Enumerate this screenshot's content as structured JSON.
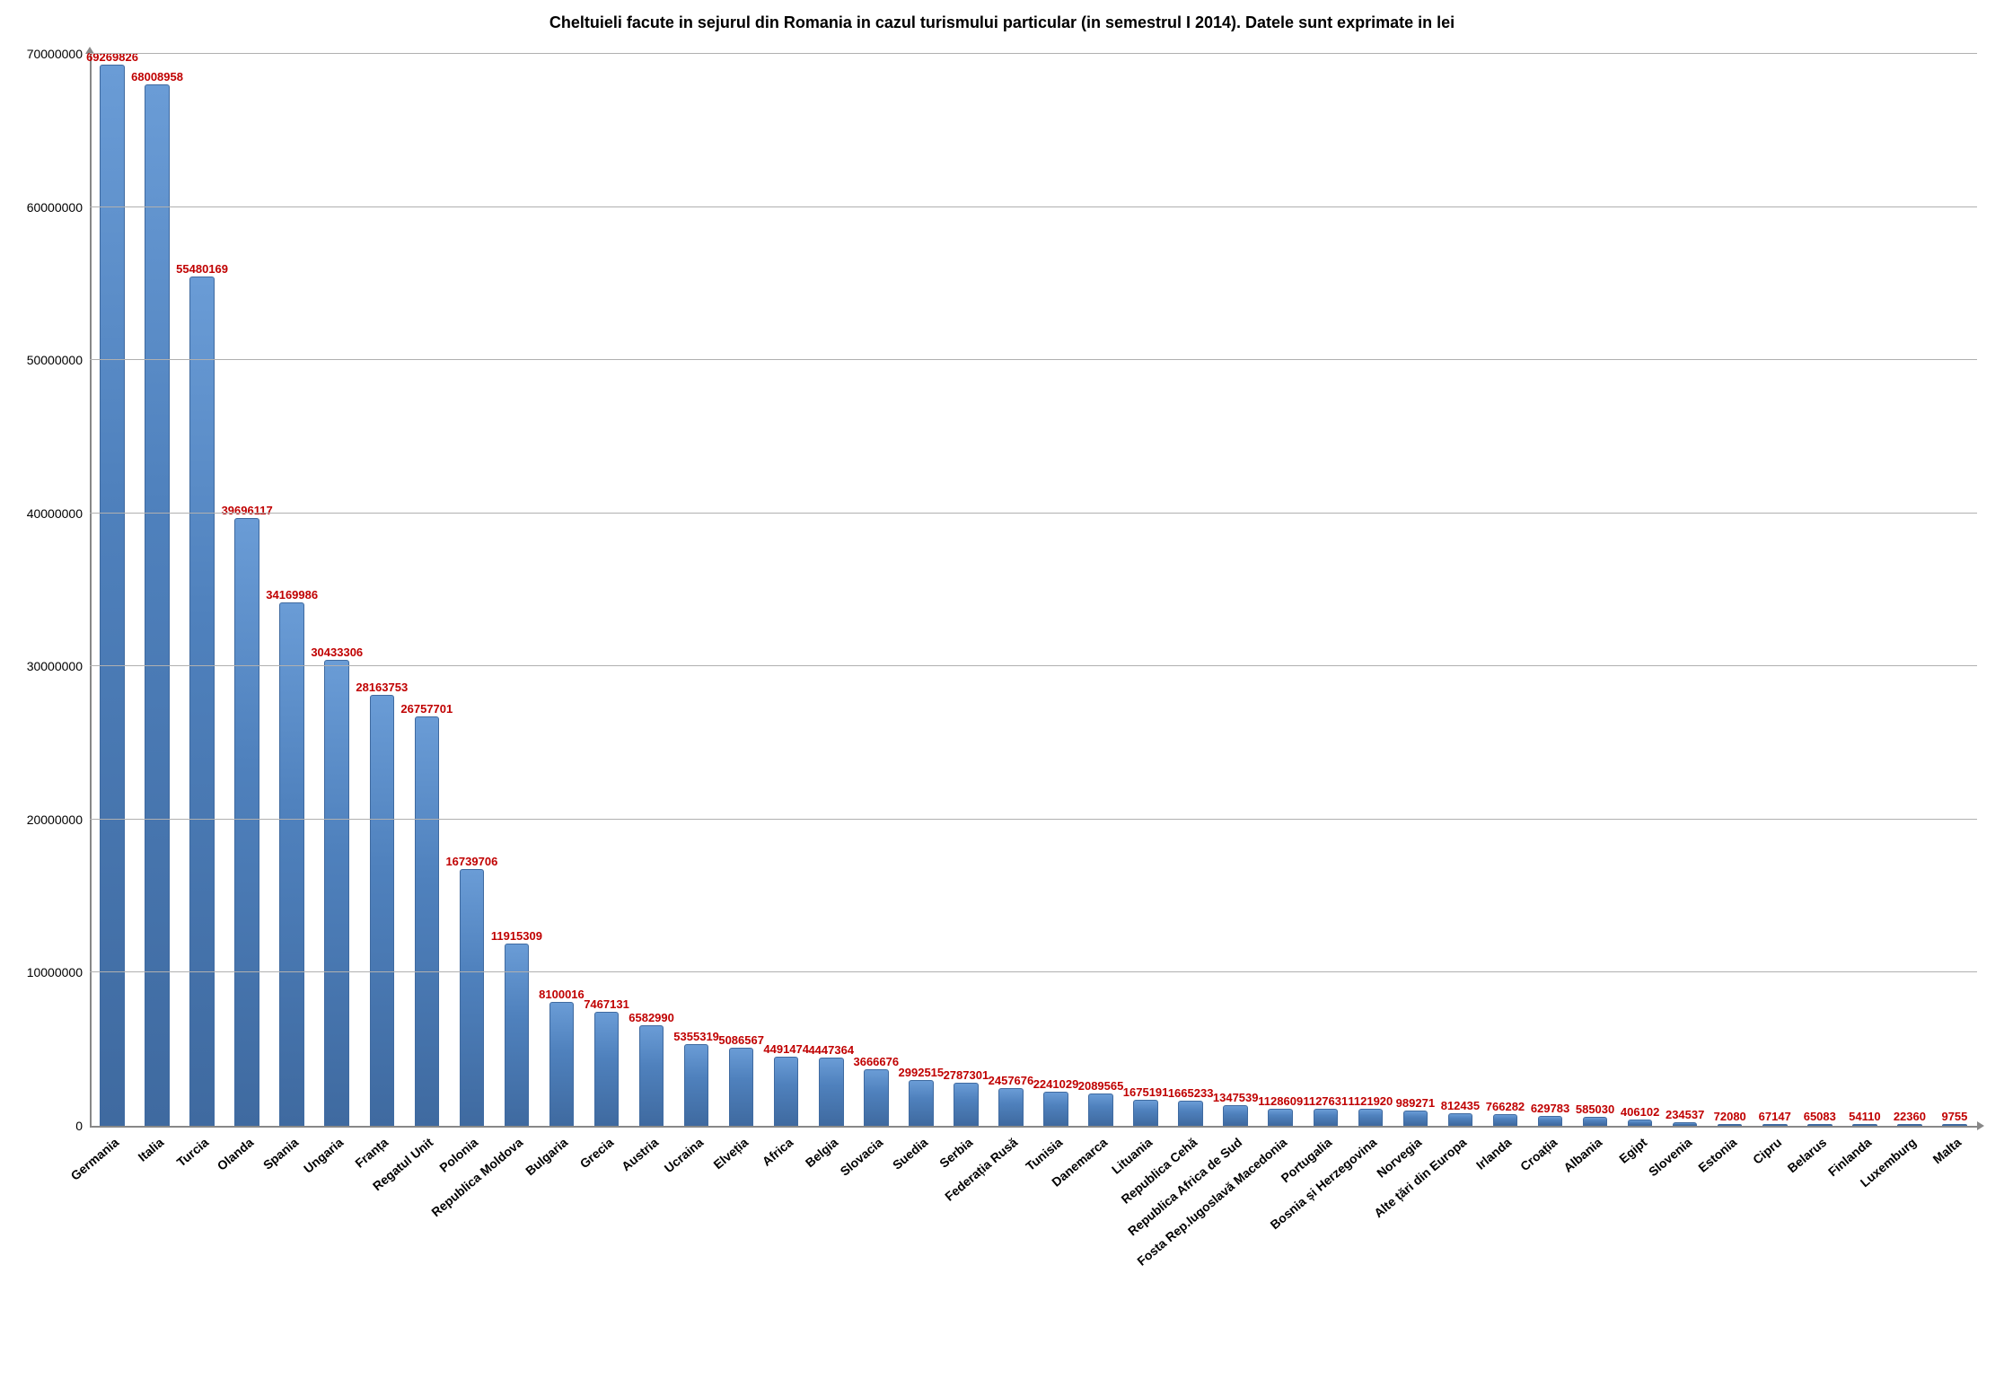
{
  "chart": {
    "type": "bar",
    "title": "Cheltuieli facute in sejurul din Romania in cazul turismului particular (in semestrul I 2014). Datele sunt exprimate in lei",
    "title_fontsize": 18,
    "title_weight": "bold",
    "title_color": "#000000",
    "background_color": "#ffffff",
    "bar_color": "#4f81bd",
    "bar_gradient_top": "#6a9cd6",
    "bar_gradient_bottom": "#3f6aa0",
    "bar_width_ratio": 0.55,
    "value_label_color": "#c00000",
    "value_label_fontsize": 13,
    "value_label_weight": "bold",
    "xlabel_fontsize": 14,
    "xlabel_angle_deg": -40,
    "grid_color": "#b0b0b0",
    "axis_color": "#888888",
    "ylim": [
      0,
      70000000
    ],
    "ytick_step": 10000000,
    "yticks": [
      0,
      10000000,
      20000000,
      30000000,
      40000000,
      50000000,
      60000000,
      70000000
    ],
    "categories": [
      "Germania",
      "Italia",
      "Turcia",
      "Olanda",
      "Spania",
      "Ungaria",
      "Franța",
      "Regatul Unit",
      "Polonia",
      "Republica Moldova",
      "Bulgaria",
      "Grecia",
      "Austria",
      "Ucraina",
      "Elveția",
      "Africa",
      "Belgia",
      "Slovacia",
      "Suedia",
      "Serbia",
      "Federația Rusă",
      "Tunisia",
      "Danemarca",
      "Lituania",
      "Republica Cehă",
      "Republica Africa de Sud",
      "Fosta Rep.Iugoslavă Macedonia",
      "Portugalia",
      "Bosnia și Herzegovina",
      "Norvegia",
      "Alte țări din Europa",
      "Irlanda",
      "Croația",
      "Albania",
      "Egipt",
      "Slovenia",
      "Estonia",
      "Cipru",
      "Belarus",
      "Finlanda",
      "Luxemburg",
      "Malta"
    ],
    "values": [
      69269826,
      68008958,
      55480169,
      39696117,
      34169986,
      30433306,
      28163753,
      26757701,
      16739706,
      11915309,
      8100016,
      7467131,
      6582990,
      5355319,
      5086567,
      4491474,
      4447364,
      3666676,
      2992515,
      2787301,
      2457676,
      2241029,
      2089565,
      1675191,
      1665233,
      1347539,
      1128609,
      1127631,
      1121920,
      989271,
      812435,
      766282,
      629783,
      585030,
      406102,
      234537,
      72080,
      67147,
      65083,
      54110,
      22360,
      9755
    ]
  }
}
